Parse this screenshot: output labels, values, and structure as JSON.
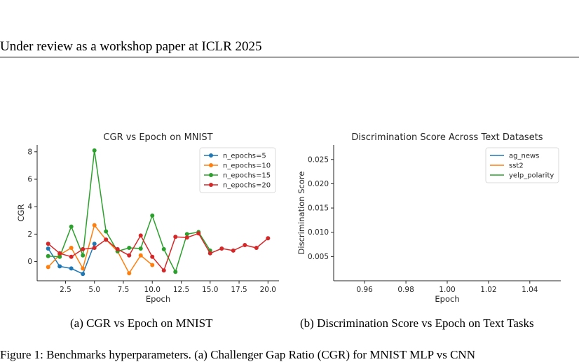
{
  "header": {
    "text": "Under review as a workshop paper at ICLR 2025"
  },
  "captions": {
    "a": "(a) CGR vs Epoch on MNIST",
    "b": "(b) Discrimination Score vs Epoch on Text Tasks",
    "figure": "Figure 1: Benchmarks hyperparameters. (a) Challenger Gap Ratio (CGR) for MNIST MLP vs CNN"
  },
  "chart_data": [
    {
      "type": "line",
      "title": "CGR vs Epoch on MNIST",
      "xlabel": "Epoch",
      "ylabel": "CGR",
      "xlim": [
        0.05,
        20.95
      ],
      "ylim": [
        -1.4,
        8.5
      ],
      "xticks": [
        2.5,
        5.0,
        7.5,
        10.0,
        12.5,
        15.0,
        17.5,
        20.0
      ],
      "xtick_labels": [
        "2.5",
        "5.0",
        "7.5",
        "10.0",
        "12.5",
        "15.0",
        "17.5",
        "20.0"
      ],
      "yticks": [
        0,
        2,
        4,
        6,
        8
      ],
      "ytick_labels": [
        "0",
        "2",
        "4",
        "6",
        "8"
      ],
      "grid": false,
      "legend": "top-right",
      "series": [
        {
          "name": "n_epochs=5",
          "color": "#1f77b4",
          "x": [
            1,
            2,
            3,
            4,
            5
          ],
          "y": [
            0.95,
            -0.35,
            -0.5,
            -0.9,
            1.3
          ]
        },
        {
          "name": "n_epochs=10",
          "color": "#ff7f0e",
          "x": [
            1,
            2,
            3,
            4,
            5,
            6,
            7,
            8,
            9,
            10
          ],
          "y": [
            -0.4,
            0.5,
            1.0,
            -0.5,
            2.65,
            1.6,
            0.75,
            -0.85,
            0.45,
            -0.25
          ]
        },
        {
          "name": "n_epochs=15",
          "color": "#2ca02c",
          "x": [
            1,
            2,
            3,
            4,
            5,
            6,
            7,
            8,
            9,
            10,
            11,
            12,
            13,
            14,
            15
          ],
          "y": [
            0.4,
            0.35,
            2.55,
            0.45,
            8.1,
            2.2,
            0.75,
            1.0,
            0.95,
            3.35,
            0.9,
            -0.75,
            2.0,
            2.15,
            0.8
          ]
        },
        {
          "name": "n_epochs=20",
          "color": "#d62728",
          "x": [
            1,
            2,
            3,
            4,
            5,
            6,
            7,
            8,
            9,
            10,
            11,
            12,
            13,
            14,
            15,
            16,
            17,
            18,
            19,
            20
          ],
          "y": [
            1.3,
            0.6,
            0.35,
            0.9,
            1.0,
            1.6,
            0.9,
            0.45,
            1.9,
            0.35,
            -0.65,
            1.8,
            1.75,
            2.05,
            0.6,
            0.95,
            0.8,
            1.2,
            1.0,
            1.7
          ]
        }
      ]
    },
    {
      "type": "line",
      "title": "Discrimination Score Across Text Datasets",
      "xlabel": "Epoch",
      "ylabel": "Discrimination Score",
      "xlim": [
        0.945,
        1.055
      ],
      "ylim": [
        0.0,
        0.028
      ],
      "xticks": [
        0.96,
        0.98,
        1.0,
        1.02,
        1.04
      ],
      "xtick_labels": [
        "0.96",
        "0.98",
        "1.00",
        "1.02",
        "1.04"
      ],
      "yticks": [
        0.005,
        0.01,
        0.015,
        0.02,
        0.025
      ],
      "ytick_labels": [
        "0.005",
        "0.010",
        "0.015",
        "0.020",
        "0.025"
      ],
      "grid": false,
      "legend": "top-right",
      "series": [
        {
          "name": "ag_news",
          "color": "#1f77b4",
          "x": [],
          "y": []
        },
        {
          "name": "sst2",
          "color": "#ff7f0e",
          "x": [],
          "y": []
        },
        {
          "name": "yelp_polarity",
          "color": "#2ca02c",
          "x": [],
          "y": []
        }
      ]
    }
  ]
}
